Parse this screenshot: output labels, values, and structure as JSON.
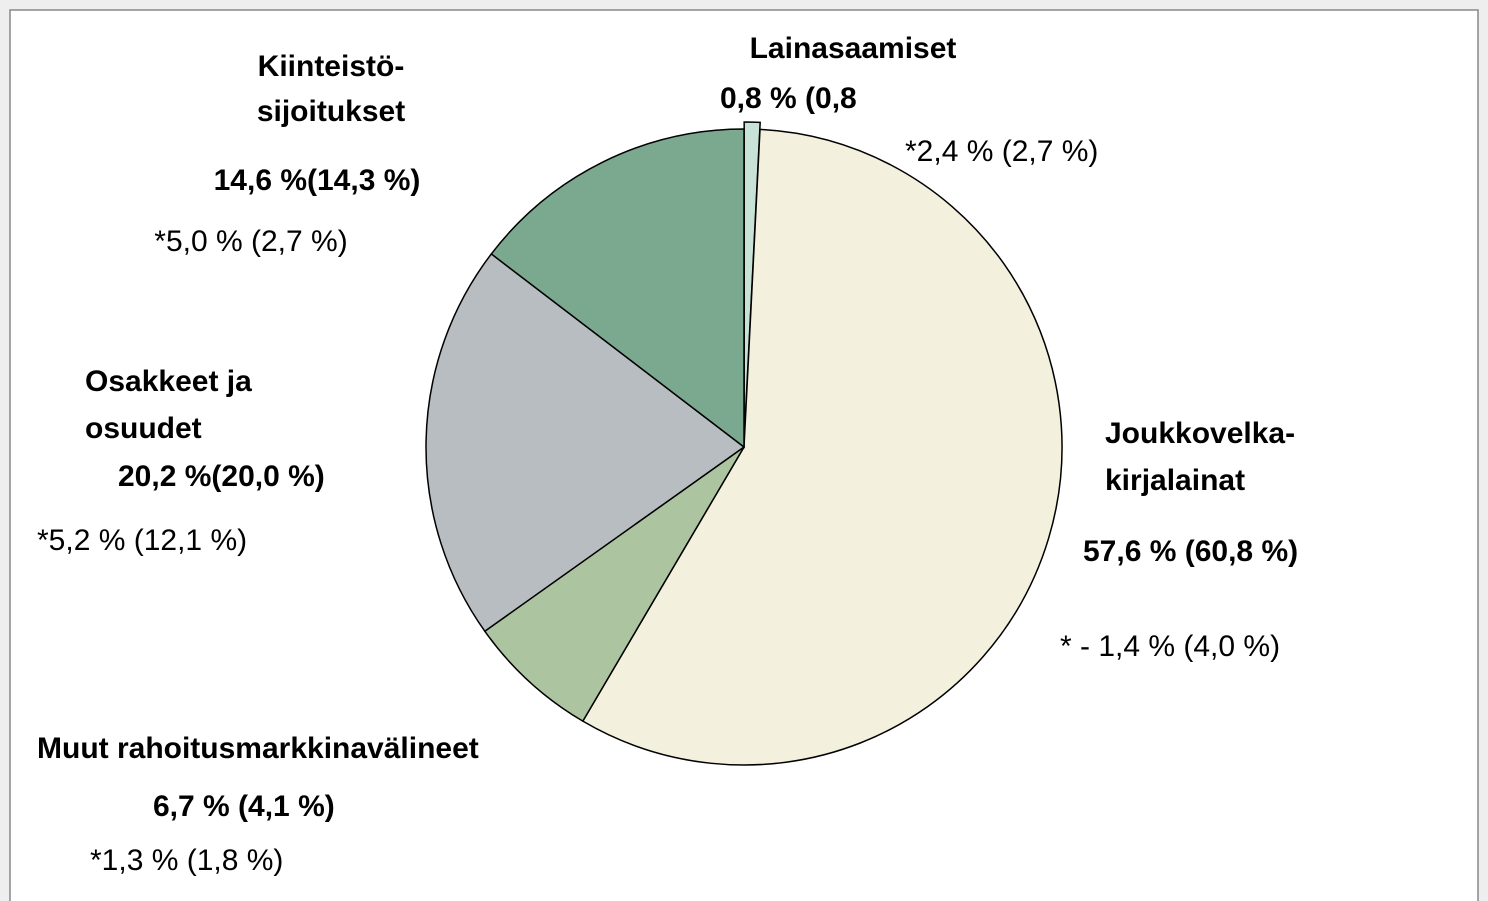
{
  "chart_data": {
    "type": "pie",
    "categories": [
      [
        "Lainasaamiset"
      ],
      [
        "Joukkovelka-",
        "kirjalainat"
      ],
      [
        "Muut rahoitusmarkkinavälineet"
      ],
      [
        "Osakkeet ja",
        "osuudet"
      ],
      [
        "Kiinteistö-",
        "sijoitukset"
      ]
    ],
    "values": [
      0.8,
      57.6,
      6.7,
      20.2,
      14.6
    ],
    "value_labels": [
      "0,8 % (0,8",
      "57,6 %   (60,8 %)",
      "6,7 %  (4,1 %)",
      "20,2 %(20,0 %)",
      "14,6 %(14,3 %)"
    ],
    "notes": [
      "*2,4 %  (2,7 %)",
      "* - 1,4 % (4,0 %)",
      "*1,3 % (1,8 %)",
      "*5,2 % (12,1 %)",
      "*5,0 % (2,7 %)"
    ],
    "colors": [
      "#c8e2d5",
      "#f3f0dd",
      "#adc4a1",
      "#b8bdc1",
      "#7ba98f"
    ],
    "exploded": [
      true,
      false,
      false,
      false,
      false
    ]
  }
}
